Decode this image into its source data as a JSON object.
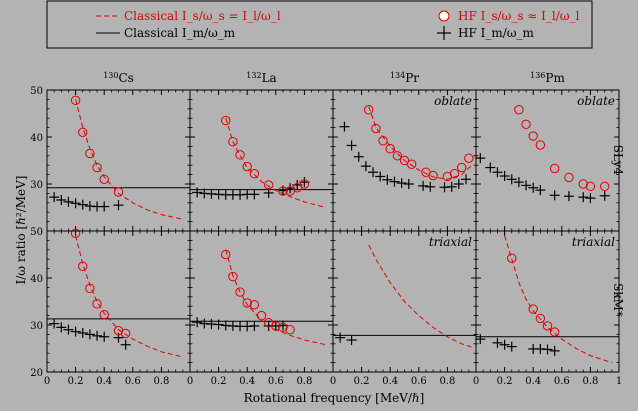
{
  "chart_data": {
    "type": "scatter",
    "xlabel": "Rotational frequency [MeV/ℏ]",
    "ylabel": "I/ω ratio [ℏ²/MeV]",
    "xlim": [
      0,
      1
    ],
    "ylim": [
      20,
      50
    ],
    "x_ticks": [
      0,
      0.2,
      0.4,
      0.6,
      0.8
    ],
    "x_tick_labels": [
      "0",
      "0.2",
      "0.4",
      "0.6",
      "0.8"
    ],
    "x_last_tick_label": "1",
    "y_ticks": [
      20,
      30,
      40,
      50
    ],
    "y_tick_labels": [
      "20",
      "30",
      "40",
      "50"
    ],
    "row_labels": [
      "SLy4",
      "SkM*"
    ],
    "legend": {
      "entries": [
        {
          "key": "classical_s",
          "label": "Classical I_s/ω_s = I_l/ω_l",
          "color": "#e00000",
          "marker": "dashed"
        },
        {
          "key": "classical_m",
          "label": "Classical I_m/ω_m",
          "color": "#000000",
          "marker": "solid"
        },
        {
          "key": "hf_s",
          "label": "HF I_s/ω_s ≈ I_l/ω_l",
          "color": "#e00000",
          "marker": "circle"
        },
        {
          "key": "hf_m",
          "label": "HF I_m/ω_m",
          "color": "#000000",
          "marker": "plus"
        }
      ]
    },
    "panels": [
      {
        "id": "cs-sly4",
        "nucleus": "130Cs",
        "mass": "130",
        "element": "Cs",
        "row": 0,
        "col": 0,
        "label": "",
        "classical_m": 29.2,
        "classical_s": [
          [
            0.2,
            48
          ],
          [
            0.25,
            42
          ],
          [
            0.3,
            37.5
          ],
          [
            0.35,
            34
          ],
          [
            0.4,
            31.5
          ],
          [
            0.5,
            28
          ],
          [
            0.6,
            26
          ],
          [
            0.7,
            24.5
          ],
          [
            0.8,
            23.5
          ],
          [
            0.95,
            22.5
          ]
        ],
        "hf_s": [
          [
            0.2,
            47.8
          ],
          [
            0.25,
            41
          ],
          [
            0.3,
            36.5
          ],
          [
            0.35,
            33.5
          ],
          [
            0.4,
            31
          ],
          [
            0.5,
            28.3
          ]
        ],
        "hf_m": [
          [
            0.05,
            27.2
          ],
          [
            0.1,
            26.6
          ],
          [
            0.15,
            26.2
          ],
          [
            0.2,
            25.9
          ],
          [
            0.25,
            25.6
          ],
          [
            0.3,
            25.3
          ],
          [
            0.35,
            25.2
          ],
          [
            0.4,
            25.2
          ],
          [
            0.5,
            25.5
          ]
        ]
      },
      {
        "id": "la-sly4",
        "nucleus": "132La",
        "mass": "132",
        "element": "La",
        "row": 0,
        "col": 1,
        "label": "",
        "classical_m": 28.8,
        "classical_s": [
          [
            0.25,
            44
          ],
          [
            0.3,
            39
          ],
          [
            0.35,
            36
          ],
          [
            0.4,
            33.5
          ],
          [
            0.5,
            30.5
          ],
          [
            0.6,
            28.6
          ],
          [
            0.7,
            27.3
          ],
          [
            0.8,
            26.2
          ],
          [
            0.95,
            25
          ]
        ],
        "hf_s": [
          [
            0.25,
            43.5
          ],
          [
            0.3,
            39
          ],
          [
            0.35,
            36.2
          ],
          [
            0.4,
            33.7
          ],
          [
            0.45,
            32.2
          ],
          [
            0.55,
            29.8
          ],
          [
            0.65,
            28.5
          ],
          [
            0.7,
            28.5
          ],
          [
            0.75,
            29.2
          ],
          [
            0.8,
            30
          ]
        ],
        "hf_m": [
          [
            0.05,
            28.2
          ],
          [
            0.1,
            28
          ],
          [
            0.15,
            27.9
          ],
          [
            0.2,
            27.8
          ],
          [
            0.25,
            27.7
          ],
          [
            0.3,
            27.7
          ],
          [
            0.35,
            27.7
          ],
          [
            0.4,
            27.8
          ],
          [
            0.45,
            27.8
          ],
          [
            0.55,
            28.1
          ],
          [
            0.65,
            28.6
          ],
          [
            0.7,
            29.1
          ],
          [
            0.75,
            29.8
          ],
          [
            0.8,
            30.4
          ]
        ]
      },
      {
        "id": "pr-sly4",
        "nucleus": "134Pr",
        "mass": "134",
        "element": "Pr",
        "row": 0,
        "col": 2,
        "label": "oblate",
        "classical_m": null,
        "classical_s": [
          [
            0.25,
            46.5
          ],
          [
            0.3,
            42
          ],
          [
            0.4,
            38
          ],
          [
            0.5,
            35
          ],
          [
            0.6,
            33
          ],
          [
            0.7,
            31.5
          ],
          [
            0.8,
            31
          ],
          [
            0.9,
            32
          ],
          [
            0.97,
            34
          ]
        ],
        "hf_s": [
          [
            0.25,
            45.8
          ],
          [
            0.3,
            41.8
          ],
          [
            0.35,
            39.2
          ],
          [
            0.4,
            37.5
          ],
          [
            0.45,
            36
          ],
          [
            0.5,
            35
          ],
          [
            0.55,
            34.2
          ],
          [
            0.65,
            32.5
          ],
          [
            0.7,
            31.8
          ],
          [
            0.8,
            31.6
          ],
          [
            0.85,
            32.2
          ],
          [
            0.9,
            33.5
          ],
          [
            0.95,
            35.5
          ]
        ],
        "hf_m": [
          [
            0.08,
            42.2
          ],
          [
            0.13,
            38.2
          ],
          [
            0.18,
            35.8
          ],
          [
            0.23,
            33.8
          ],
          [
            0.28,
            32.5
          ],
          [
            0.33,
            31.6
          ],
          [
            0.38,
            30.9
          ],
          [
            0.43,
            30.5
          ],
          [
            0.48,
            30.2
          ],
          [
            0.53,
            30
          ],
          [
            0.63,
            29.6
          ],
          [
            0.68,
            29.4
          ],
          [
            0.78,
            29.3
          ],
          [
            0.83,
            29.4
          ],
          [
            0.88,
            30
          ],
          [
            0.93,
            31
          ]
        ]
      },
      {
        "id": "pm-sly4",
        "nucleus": "136Pm",
        "mass": "136",
        "element": "Pm",
        "row": 0,
        "col": 3,
        "label": "oblate",
        "classical_m": null,
        "classical_s": [],
        "hf_s": [
          [
            0.3,
            45.8
          ],
          [
            0.35,
            42.7
          ],
          [
            0.4,
            40.2
          ],
          [
            0.45,
            38.3
          ],
          [
            0.55,
            33.3
          ],
          [
            0.65,
            31.4
          ],
          [
            0.75,
            30
          ],
          [
            0.8,
            29.5
          ],
          [
            0.9,
            29.5
          ]
        ],
        "hf_m": [
          [
            0.03,
            35.5
          ],
          [
            0.1,
            33.5
          ],
          [
            0.15,
            32.5
          ],
          [
            0.2,
            31.7
          ],
          [
            0.25,
            31
          ],
          [
            0.3,
            30.4
          ],
          [
            0.35,
            29.7
          ],
          [
            0.4,
            29.2
          ],
          [
            0.45,
            28.7
          ],
          [
            0.55,
            27.6
          ],
          [
            0.65,
            27.4
          ],
          [
            0.75,
            27.2
          ],
          [
            0.8,
            27
          ],
          [
            0.9,
            27.5
          ]
        ]
      },
      {
        "id": "cs-skm",
        "nucleus": "130Cs",
        "mass": "130",
        "element": "Cs",
        "row": 1,
        "col": 0,
        "label": "",
        "classical_m": 31.3,
        "classical_s": [
          [
            0.2,
            49
          ],
          [
            0.25,
            43
          ],
          [
            0.3,
            38.5
          ],
          [
            0.35,
            35
          ],
          [
            0.4,
            32.5
          ],
          [
            0.5,
            29
          ],
          [
            0.6,
            27
          ],
          [
            0.7,
            25.5
          ],
          [
            0.8,
            24.3
          ],
          [
            0.95,
            23.2
          ]
        ],
        "hf_s": [
          [
            0.2,
            49.5
          ],
          [
            0.25,
            42.5
          ],
          [
            0.3,
            37.8
          ],
          [
            0.35,
            34.5
          ],
          [
            0.4,
            32.2
          ],
          [
            0.5,
            28.8
          ],
          [
            0.55,
            28.2
          ]
        ],
        "hf_m": [
          [
            0.05,
            30.3
          ],
          [
            0.1,
            29.5
          ],
          [
            0.15,
            29
          ],
          [
            0.2,
            28.6
          ],
          [
            0.25,
            28.3
          ],
          [
            0.3,
            28
          ],
          [
            0.35,
            27.7
          ],
          [
            0.4,
            27.5
          ],
          [
            0.5,
            27.3
          ],
          [
            0.55,
            25.8
          ]
        ]
      },
      {
        "id": "la-skm",
        "nucleus": "132La",
        "mass": "132",
        "element": "La",
        "row": 1,
        "col": 1,
        "label": "",
        "classical_m": 30.8,
        "classical_s": [
          [
            0.25,
            46
          ],
          [
            0.3,
            40.5
          ],
          [
            0.35,
            37
          ],
          [
            0.4,
            34.3
          ],
          [
            0.5,
            31
          ],
          [
            0.6,
            29
          ],
          [
            0.7,
            27.8
          ],
          [
            0.8,
            26.8
          ],
          [
            0.95,
            25.8
          ]
        ],
        "hf_s": [
          [
            0.25,
            45
          ],
          [
            0.3,
            40.3
          ],
          [
            0.35,
            37
          ],
          [
            0.4,
            34.7
          ],
          [
            0.45,
            34.3
          ],
          [
            0.5,
            32
          ],
          [
            0.55,
            30.5
          ],
          [
            0.6,
            29.8
          ],
          [
            0.65,
            29.5
          ],
          [
            0.7,
            29
          ]
        ],
        "hf_m": [
          [
            0.05,
            30.6
          ],
          [
            0.1,
            30.3
          ],
          [
            0.15,
            30.2
          ],
          [
            0.2,
            30.1
          ],
          [
            0.25,
            29.9
          ],
          [
            0.3,
            29.8
          ],
          [
            0.35,
            29.7
          ],
          [
            0.4,
            29.7
          ],
          [
            0.45,
            29.8
          ],
          [
            0.55,
            29.8
          ],
          [
            0.6,
            29.8
          ],
          [
            0.65,
            29.9
          ]
        ]
      },
      {
        "id": "pr-skm",
        "nucleus": "134Pr",
        "mass": "134",
        "element": "Pr",
        "row": 1,
        "col": 2,
        "label": "triaxial",
        "classical_m": 27.8,
        "classical_s": [
          [
            0.25,
            47
          ],
          [
            0.3,
            44
          ],
          [
            0.4,
            39
          ],
          [
            0.5,
            35
          ],
          [
            0.6,
            32
          ],
          [
            0.7,
            29.5
          ],
          [
            0.8,
            27.5
          ],
          [
            0.9,
            26
          ],
          [
            0.97,
            25.3
          ]
        ],
        "hf_s": [],
        "hf_m": [
          [
            0.05,
            27.3
          ],
          [
            0.13,
            26.8
          ]
        ]
      },
      {
        "id": "pm-skm",
        "nucleus": "136Pm",
        "mass": "136",
        "element": "Pm",
        "row": 1,
        "col": 3,
        "label": "triaxial",
        "classical_m": 27.5,
        "classical_s": [
          [
            0.2,
            49
          ],
          [
            0.25,
            44
          ],
          [
            0.3,
            39
          ],
          [
            0.35,
            35.5
          ],
          [
            0.4,
            33
          ],
          [
            0.5,
            29.5
          ],
          [
            0.6,
            27
          ],
          [
            0.7,
            25
          ],
          [
            0.8,
            23.5
          ],
          [
            0.95,
            22
          ]
        ],
        "hf_s": [
          [
            0.25,
            44.2
          ],
          [
            0.4,
            33.4
          ],
          [
            0.45,
            31.4
          ],
          [
            0.5,
            29.8
          ],
          [
            0.55,
            28.5
          ]
        ],
        "hf_m": [
          [
            0.03,
            27
          ],
          [
            0.15,
            26.2
          ],
          [
            0.2,
            25.8
          ],
          [
            0.25,
            25.4
          ],
          [
            0.4,
            24.9
          ],
          [
            0.45,
            24.9
          ],
          [
            0.5,
            24.8
          ],
          [
            0.55,
            24.5
          ]
        ]
      }
    ]
  }
}
